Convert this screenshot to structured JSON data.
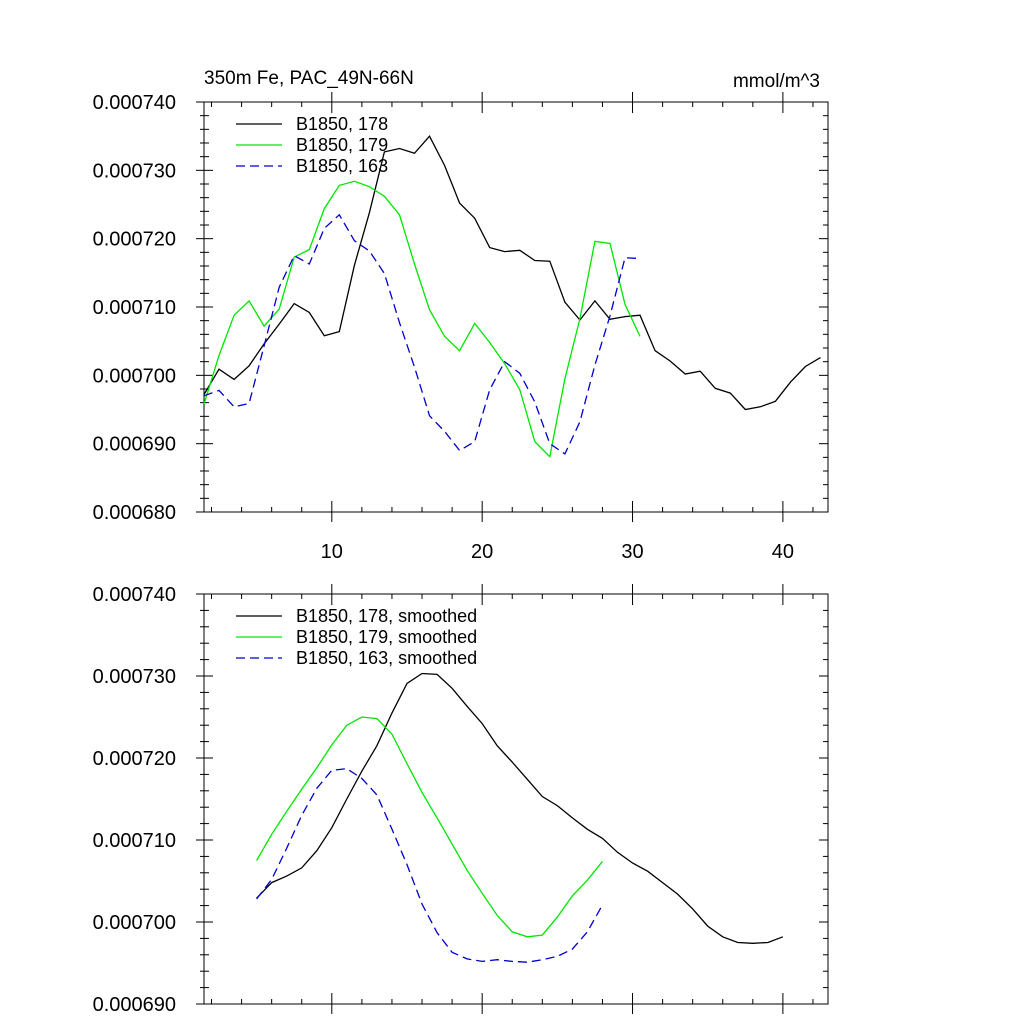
{
  "chart_data": [
    {
      "type": "line",
      "title": "350m Fe, PAC_49N-66N",
      "units": "mmol/m^3",
      "xlim": [
        1.5,
        43
      ],
      "ylim": [
        0.00068,
        0.00074
      ],
      "xticks": [
        10,
        20,
        30,
        40
      ],
      "xtick_labels": [
        "10",
        "20",
        "30",
        "40"
      ],
      "yticks": [
        0.00068,
        0.00069,
        0.0007,
        0.00071,
        0.00072,
        0.00073,
        0.00074
      ],
      "ytick_labels": [
        "0.000680",
        "0.000690",
        "0.000700",
        "0.000710",
        "0.000720",
        "0.000730",
        "0.000740"
      ],
      "legend_position": "top-left",
      "series": [
        {
          "name": "B1850, 178",
          "color": "#000000",
          "dash": "solid",
          "x": [
            1.5,
            2.5,
            3.5,
            4.5,
            5.5,
            6.5,
            7.5,
            8.5,
            9.5,
            10.5,
            11.5,
            12.5,
            13.5,
            14.5,
            15.5,
            16.5,
            17.5,
            18.5,
            19.5,
            20.5,
            21.5,
            22.5,
            23.5,
            24.5,
            25.5,
            26.5,
            27.5,
            28.5,
            29.5,
            30.5,
            31.5,
            32.5,
            33.5,
            34.5,
            35.5,
            36.5,
            37.5,
            38.5,
            39.5,
            40.5,
            41.5,
            42.5
          ],
          "y": [
            0.0006972,
            0.0007009,
            0.0006994,
            0.0007014,
            0.0007046,
            0.0007075,
            0.0007105,
            0.0007092,
            0.0007058,
            0.0007064,
            0.0007161,
            0.0007238,
            0.0007327,
            0.0007332,
            0.0007325,
            0.000735,
            0.0007307,
            0.0007252,
            0.000723,
            0.0007187,
            0.0007181,
            0.0007183,
            0.0007168,
            0.0007167,
            0.0007107,
            0.0007081,
            0.0007109,
            0.0007082,
            0.0007086,
            0.0007088,
            0.0007036,
            0.0007021,
            0.0007002,
            0.0007006,
            0.0006981,
            0.0006974,
            0.000695,
            0.0006954,
            0.0006962,
            0.000699,
            0.0007013,
            0.0007026
          ]
        },
        {
          "name": "B1850, 179",
          "color": "#00e600",
          "dash": "solid",
          "x": [
            1.5,
            2.5,
            3.5,
            4.5,
            5.5,
            6.5,
            7.5,
            8.5,
            9.5,
            10.5,
            11.5,
            12.5,
            13.5,
            14.5,
            15.5,
            16.5,
            17.5,
            18.5,
            19.5,
            20.5,
            21.5,
            22.5,
            23.5,
            24.5,
            25.5,
            26.5,
            27.5,
            28.5,
            29.5,
            30.5
          ],
          "y": [
            0.0006958,
            0.0007029,
            0.0007088,
            0.0007109,
            0.0007072,
            0.0007097,
            0.0007173,
            0.0007184,
            0.0007244,
            0.0007278,
            0.0007284,
            0.0007276,
            0.0007262,
            0.0007235,
            0.0007163,
            0.0007096,
            0.0007057,
            0.0007036,
            0.0007076,
            0.0007048,
            0.0007017,
            0.0006979,
            0.0006903,
            0.0006881,
            0.0006995,
            0.0007083,
            0.0007196,
            0.0007193,
            0.0007104,
            0.0007057
          ]
        },
        {
          "name": "B1850, 163",
          "color": "#0000cc",
          "dash": "dashed",
          "x": [
            1.5,
            2.5,
            3.5,
            4.5,
            5.5,
            6.5,
            7.5,
            8.5,
            9.5,
            10.5,
            11.5,
            12.5,
            13.5,
            14.5,
            15.5,
            16.5,
            17.5,
            18.5,
            19.5,
            20.5,
            21.5,
            22.5,
            23.5,
            24.5,
            25.5,
            26.5,
            27.5,
            28.5,
            29.5,
            30.5
          ],
          "y": [
            0.000697,
            0.0006978,
            0.0006954,
            0.0006959,
            0.0007043,
            0.0007129,
            0.0007175,
            0.0007163,
            0.0007215,
            0.0007235,
            0.0007197,
            0.0007182,
            0.0007149,
            0.0007077,
            0.0007012,
            0.0006941,
            0.0006918,
            0.000689,
            0.0006903,
            0.0006979,
            0.000702,
            0.0007003,
            0.0006961,
            0.00069,
            0.0006885,
            0.0006932,
            0.0007015,
            0.0007087,
            0.0007172,
            0.0007171
          ]
        }
      ]
    },
    {
      "type": "line",
      "title": "",
      "xlim": [
        1.5,
        43
      ],
      "ylim": [
        0.00069,
        0.00074
      ],
      "xticks": [
        10,
        20,
        30,
        40
      ],
      "yticks": [
        0.00069,
        0.0007,
        0.00071,
        0.00072,
        0.00073,
        0.00074
      ],
      "ytick_labels": [
        "0.000690",
        "0.000700",
        "0.000710",
        "0.000720",
        "0.000730",
        "0.000740"
      ],
      "legend_position": "top-left",
      "series": [
        {
          "name": "B1850, 178, smoothed",
          "color": "#000000",
          "dash": "solid",
          "x": [
            5,
            6,
            7,
            8,
            9,
            10,
            11,
            12,
            13,
            14,
            15,
            16,
            17,
            18,
            19,
            20,
            21,
            22,
            23,
            24,
            25,
            26,
            27,
            28,
            29,
            30,
            31,
            32,
            33,
            34,
            35,
            36,
            37,
            38,
            39,
            40
          ],
          "y": [
            0.0007029,
            0.0007048,
            0.0007056,
            0.0007066,
            0.0007087,
            0.0007115,
            0.000715,
            0.0007184,
            0.0007215,
            0.0007255,
            0.0007291,
            0.0007303,
            0.0007302,
            0.0007285,
            0.0007263,
            0.0007242,
            0.0007215,
            0.0007195,
            0.0007174,
            0.0007153,
            0.0007142,
            0.0007127,
            0.0007113,
            0.0007102,
            0.0007085,
            0.0007072,
            0.0007062,
            0.0007048,
            0.0007034,
            0.0007016,
            0.0006995,
            0.0006982,
            0.0006975,
            0.0006974,
            0.0006975,
            0.0006982
          ]
        },
        {
          "name": "B1850, 179, smoothed",
          "color": "#00e600",
          "dash": "solid",
          "x": [
            5,
            6,
            7,
            8,
            9,
            10,
            11,
            12,
            13,
            14,
            15,
            16,
            17,
            18,
            19,
            20,
            21,
            22,
            23,
            24,
            25,
            26,
            27,
            28
          ],
          "y": [
            0.0007075,
            0.0007107,
            0.0007135,
            0.0007162,
            0.0007188,
            0.0007216,
            0.000724,
            0.000725,
            0.0007248,
            0.0007229,
            0.0007193,
            0.0007158,
            0.0007127,
            0.0007095,
            0.0007063,
            0.0007035,
            0.0007008,
            0.0006988,
            0.0006982,
            0.0006984,
            0.0007006,
            0.0007032,
            0.0007051,
            0.0007074
          ]
        },
        {
          "name": "B1850, 163, smoothed",
          "color": "#0000cc",
          "dash": "dashed",
          "x": [
            5,
            6,
            7,
            8,
            9,
            10,
            11,
            12,
            13,
            14,
            15,
            16,
            17,
            18,
            19,
            20,
            21,
            22,
            23,
            24,
            25,
            26,
            27,
            28
          ],
          "y": [
            0.0007028,
            0.0007052,
            0.000709,
            0.000713,
            0.0007163,
            0.0007185,
            0.0007187,
            0.0007175,
            0.0007155,
            0.0007113,
            0.000707,
            0.0007022,
            0.0006987,
            0.0006963,
            0.0006955,
            0.0006952,
            0.0006954,
            0.0006952,
            0.0006951,
            0.0006954,
            0.0006958,
            0.0006967,
            0.0006988,
            0.0007021
          ]
        }
      ]
    }
  ]
}
